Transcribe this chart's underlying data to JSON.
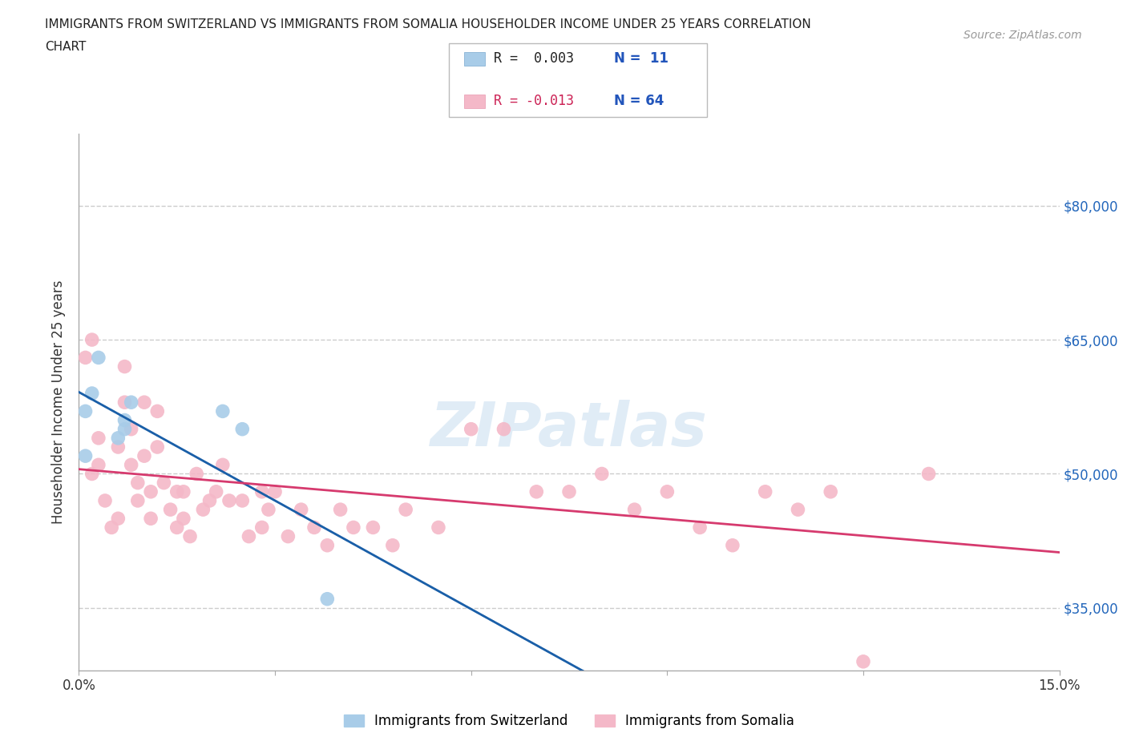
{
  "title_line1": "IMMIGRANTS FROM SWITZERLAND VS IMMIGRANTS FROM SOMALIA HOUSEHOLDER INCOME UNDER 25 YEARS CORRELATION",
  "title_line2": "CHART",
  "source_text": "Source: ZipAtlas.com",
  "ylabel": "Householder Income Under 25 years",
  "xlim": [
    0.0,
    0.15
  ],
  "ylim": [
    28000,
    88000
  ],
  "yticks": [
    35000,
    50000,
    65000,
    80000
  ],
  "ytick_labels": [
    "$35,000",
    "$50,000",
    "$65,000",
    "$80,000"
  ],
  "xticks": [
    0.0,
    0.03,
    0.06,
    0.09,
    0.12,
    0.15
  ],
  "xtick_labels": [
    "0.0%",
    "",
    "",
    "",
    "",
    "15.0%"
  ],
  "switzerland_color": "#a8cce8",
  "somalia_color": "#f4b8c8",
  "switzerland_line_color": "#1a5fa8",
  "somalia_line_color": "#d63a6e",
  "background_color": "#ffffff",
  "grid_color": "#cccccc",
  "watermark": "ZIPatlas",
  "legend_r_swiss": "R =  0.003",
  "legend_n_swiss": "N =  11",
  "legend_r_somalia": "R = -0.013",
  "legend_n_somalia": "N = 64",
  "swiss_x": [
    0.001,
    0.001,
    0.002,
    0.003,
    0.006,
    0.007,
    0.007,
    0.008,
    0.022,
    0.025,
    0.038
  ],
  "swiss_y": [
    57000,
    52000,
    59000,
    63000,
    54000,
    55000,
    56000,
    58000,
    57000,
    55000,
    36000
  ],
  "somalia_x": [
    0.001,
    0.002,
    0.002,
    0.003,
    0.003,
    0.004,
    0.005,
    0.006,
    0.006,
    0.007,
    0.007,
    0.008,
    0.008,
    0.009,
    0.009,
    0.01,
    0.01,
    0.011,
    0.011,
    0.012,
    0.012,
    0.013,
    0.014,
    0.015,
    0.015,
    0.016,
    0.016,
    0.017,
    0.018,
    0.019,
    0.02,
    0.021,
    0.022,
    0.023,
    0.025,
    0.026,
    0.028,
    0.028,
    0.029,
    0.03,
    0.032,
    0.034,
    0.036,
    0.038,
    0.04,
    0.042,
    0.045,
    0.048,
    0.05,
    0.055,
    0.06,
    0.065,
    0.07,
    0.075,
    0.08,
    0.085,
    0.09,
    0.095,
    0.1,
    0.105,
    0.11,
    0.115,
    0.12,
    0.13
  ],
  "somalia_y": [
    63000,
    65000,
    50000,
    54000,
    51000,
    47000,
    44000,
    53000,
    45000,
    62000,
    58000,
    55000,
    51000,
    49000,
    47000,
    58000,
    52000,
    48000,
    45000,
    57000,
    53000,
    49000,
    46000,
    48000,
    44000,
    48000,
    45000,
    43000,
    50000,
    46000,
    47000,
    48000,
    51000,
    47000,
    47000,
    43000,
    48000,
    44000,
    46000,
    48000,
    43000,
    46000,
    44000,
    42000,
    46000,
    44000,
    44000,
    42000,
    46000,
    44000,
    55000,
    55000,
    48000,
    48000,
    50000,
    46000,
    48000,
    44000,
    42000,
    48000,
    46000,
    48000,
    29000,
    50000
  ]
}
